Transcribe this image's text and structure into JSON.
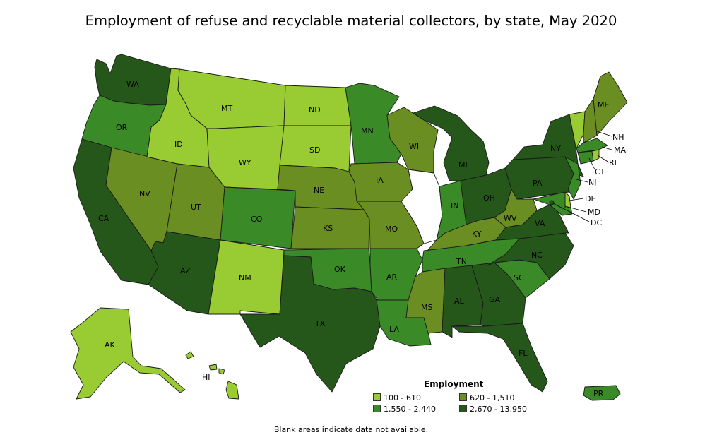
{
  "title": "Employment of refuse and recyclable material collectors, by state, May 2020",
  "legend": {
    "title": "Employment",
    "classes": [
      {
        "label": "100 - 610",
        "color": "#99cc33"
      },
      {
        "label": "620 - 1,510",
        "color": "#6b8e23"
      },
      {
        "label": "1,550 - 2,440",
        "color": "#3a8a28"
      },
      {
        "label": "2,670 - 13,950",
        "color": "#26571a"
      }
    ]
  },
  "footnote": "Blank areas indicate data not available.",
  "states": {
    "WA": 3,
    "OR": 2,
    "CA": 3,
    "NV": 1,
    "ID": 0,
    "MT": 0,
    "WY": 0,
    "UT": 1,
    "AZ": 3,
    "CO": 2,
    "NM": 0,
    "ND": 0,
    "SD": 0,
    "NE": 1,
    "KS": 1,
    "OK": 2,
    "TX": 3,
    "MN": 2,
    "IA": 1,
    "MO": 1,
    "AR": 2,
    "LA": 2,
    "WI": 1,
    "IL": null,
    "MI": 3,
    "IN": 2,
    "OH": 3,
    "KY": 1,
    "TN": 2,
    "MS": 1,
    "AL": 3,
    "GA": 3,
    "FL": 3,
    "SC": 2,
    "NC": 3,
    "VA": 3,
    "WV": 1,
    "PA": 3,
    "NY": 3,
    "VT": 0,
    "NH": 1,
    "ME": 1,
    "MA": 2,
    "RI": 0,
    "CT": 2,
    "NJ": 2,
    "DE": 0,
    "MD": 2,
    "DC": 3,
    "AK": 0,
    "HI": 0,
    "PR": 2
  },
  "labels": {
    "WA": "WA",
    "OR": "OR",
    "CA": "CA",
    "NV": "NV",
    "ID": "ID",
    "MT": "MT",
    "WY": "WY",
    "UT": "UT",
    "AZ": "AZ",
    "CO": "CO",
    "NM": "NM",
    "ND": "ND",
    "SD": "SD",
    "NE": "NE",
    "KS": "KS",
    "OK": "OK",
    "TX": "TX",
    "MN": "MN",
    "IA": "IA",
    "MO": "MO",
    "AR": "AR",
    "LA": "LA",
    "WI": "WI",
    "MI": "MI",
    "IN": "IN",
    "OH": "OH",
    "KY": "KY",
    "TN": "TN",
    "MS": "MS",
    "AL": "AL",
    "GA": "GA",
    "FL": "FL",
    "SC": "SC",
    "NC": "NC",
    "VA": "VA",
    "WV": "WV",
    "PA": "PA",
    "NY": "NY",
    "ME": "ME",
    "NH": "NH",
    "MA": "MA",
    "RI": "RI",
    "CT": "CT",
    "NJ": "NJ",
    "DE": "DE",
    "MD": "MD",
    "DC": "DC",
    "AK": "AK",
    "HI": "HI",
    "PR": "PR"
  }
}
